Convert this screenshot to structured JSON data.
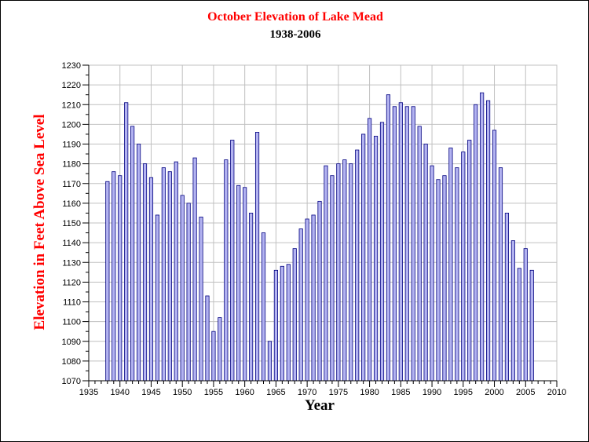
{
  "colors": {
    "title": "#ff0000",
    "subtitle": "#000000",
    "ylabel": "#ff0000",
    "xlabel": "#000000",
    "bar_fill": "#b3b3f0",
    "bar_stroke": "#000080",
    "grid": "#c0c0c0",
    "axis": "#000000"
  },
  "chart_data": {
    "type": "bar",
    "title": "October Elevation of Lake Mead",
    "subtitle": "1938-2006",
    "xlabel": "Year",
    "ylabel": "Elevation in Feet Above Sea Level",
    "xlim": [
      1935,
      2010
    ],
    "ylim": [
      1070,
      1230
    ],
    "xticks": [
      "1935",
      "1940",
      "1945",
      "1950",
      "1955",
      "1960",
      "1965",
      "1970",
      "1975",
      "1980",
      "1985",
      "1990",
      "1995",
      "2000",
      "2005",
      "2010"
    ],
    "yticks": [
      "1070",
      "1080",
      "1090",
      "1100",
      "1110",
      "1120",
      "1130",
      "1140",
      "1150",
      "1160",
      "1170",
      "1180",
      "1190",
      "1200",
      "1210",
      "1220",
      "1230"
    ],
    "grid": true,
    "legend": "none",
    "x": [
      1938,
      1939,
      1940,
      1941,
      1942,
      1943,
      1944,
      1945,
      1946,
      1947,
      1948,
      1949,
      1950,
      1951,
      1952,
      1953,
      1954,
      1955,
      1956,
      1957,
      1958,
      1959,
      1960,
      1961,
      1962,
      1963,
      1964,
      1965,
      1966,
      1967,
      1968,
      1969,
      1970,
      1971,
      1972,
      1973,
      1974,
      1975,
      1976,
      1977,
      1978,
      1979,
      1980,
      1981,
      1982,
      1983,
      1984,
      1985,
      1986,
      1987,
      1988,
      1989,
      1990,
      1991,
      1992,
      1993,
      1994,
      1995,
      1996,
      1997,
      1998,
      1999,
      2000,
      2001,
      2002,
      2003,
      2004,
      2005,
      2006
    ],
    "values": [
      1171,
      1176,
      1174,
      1211,
      1199,
      1190,
      1180,
      1173,
      1154,
      1178,
      1176,
      1181,
      1164,
      1160,
      1183,
      1153,
      1113,
      1095,
      1102,
      1182,
      1192,
      1169,
      1168,
      1155,
      1196,
      1145,
      1090,
      1126,
      1128,
      1129,
      1137,
      1147,
      1152,
      1154,
      1161,
      1179,
      1174,
      1180,
      1182,
      1180,
      1187,
      1195,
      1203,
      1194,
      1201,
      1215,
      1209,
      1211,
      1209,
      1209,
      1199,
      1190,
      1179,
      1172,
      1174,
      1188,
      1178,
      1186,
      1192,
      1210,
      1216,
      1212,
      1197,
      1178,
      1155,
      1141,
      1127,
      1137,
      1126
    ]
  }
}
